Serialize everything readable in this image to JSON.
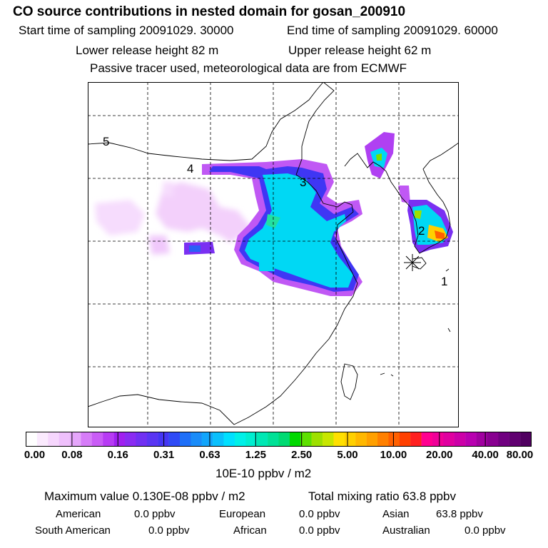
{
  "header": {
    "title": "CO  source contributions in nested domain for gosan_200910",
    "start_time": "Start time of sampling 20091029. 30000",
    "end_time": "End time of sampling 20091029. 60000",
    "lower_release": "Lower release height   82 m",
    "upper_release": "Upper release height   62 m",
    "tracer_note": "Passive tracer used, meteorological data are from ECMWF"
  },
  "map": {
    "station_marker": "receptor-star-icon",
    "labels": [
      "1",
      "2",
      "3",
      "4",
      "5"
    ]
  },
  "colorbar": {
    "ticks": [
      "0.00",
      "0.08",
      "0.16",
      "0.31",
      "0.63",
      "1.25",
      "2.50",
      "5.00",
      "10.00",
      "20.00",
      "40.00",
      "80.00"
    ],
    "unit": "10E-10 ppbv / m2",
    "colors": [
      "#ffffff",
      "#fbeafe",
      "#f6d6fd",
      "#efc0fc",
      "#e5a6fb",
      "#d67cf8",
      "#c95cf6",
      "#b73bf4",
      "#a020f0",
      "#8a2cf2",
      "#7131f2",
      "#5a36f3",
      "#4536f4",
      "#2f4bf6",
      "#1e6ff8",
      "#1a8cf9",
      "#11a5fb",
      "#0ac0fc",
      "#00e0ff",
      "#00f0e8",
      "#00eed0",
      "#00e8b4",
      "#00e196",
      "#00da72",
      "#00d800",
      "#5ee000",
      "#9ee000",
      "#c8e600",
      "#ffe000",
      "#ffd000",
      "#ffb800",
      "#ffa000",
      "#ff8000",
      "#ff6000",
      "#ff4000",
      "#ff2020",
      "#ff0090",
      "#f00098",
      "#e000a0",
      "#cc00a8",
      "#b800b0",
      "#a000a0",
      "#880090",
      "#700080",
      "#600070",
      "#500060"
    ]
  },
  "summary": {
    "max_value": "Maximum value  0.130E-08 ppbv / m2",
    "total_mixing": "Total mixing ratio       63.8 ppbv",
    "american_label": "American",
    "american_value": "0.0 ppbv",
    "european_label": "European",
    "european_value": "0.0 ppbv",
    "asian_label": "Asian",
    "asian_value": "63.8 ppbv",
    "south_american_label": "South American",
    "south_american_value": "0.0 ppbv",
    "african_label": "African",
    "african_value": "0.0 ppbv",
    "australian_label": "Australian",
    "australian_value": "0.0 ppbv"
  }
}
